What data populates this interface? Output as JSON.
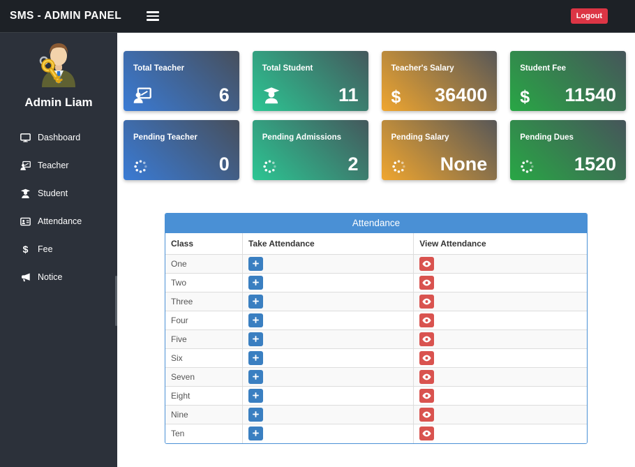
{
  "navbar": {
    "title": "SMS - ADMIN PANEL",
    "logout_label": "Logout",
    "bg_color": "#1d2126",
    "logout_color": "#dc3545"
  },
  "sidebar": {
    "bg_color": "#2c313a",
    "admin_name": "Admin Liam",
    "items": [
      {
        "label": "Dashboard",
        "icon": "desktop-icon"
      },
      {
        "label": "Teacher",
        "icon": "chalkboard-teacher-icon"
      },
      {
        "label": "Student",
        "icon": "user-graduate-icon"
      },
      {
        "label": "Attendance",
        "icon": "address-card-icon"
      },
      {
        "label": "Fee",
        "icon": "dollar-icon"
      },
      {
        "label": "Notice",
        "icon": "bullhorn-icon"
      }
    ]
  },
  "cards": [
    {
      "title": "Total Teacher",
      "value": "6",
      "icon": "chalkboard-teacher-icon",
      "gradient_from": "#3a7bd5",
      "gradient_to": "#474f5c"
    },
    {
      "title": "Total Student",
      "value": "11",
      "icon": "user-graduate-icon",
      "gradient_from": "#2cc693",
      "gradient_to": "#44585c"
    },
    {
      "title": "Teacher's Salary",
      "value": "36400",
      "icon": "dollar-icon",
      "gradient_from": "#f0a62f",
      "gradient_to": "#585757"
    },
    {
      "title": "Student Fee",
      "value": "11540",
      "icon": "dollar-icon",
      "gradient_from": "#28a745",
      "gradient_to": "#46555a"
    },
    {
      "title": "Pending Teacher",
      "value": "0",
      "icon": "spinner-icon",
      "gradient_from": "#3a7bd5",
      "gradient_to": "#474f5c"
    },
    {
      "title": "Pending Admissions",
      "value": "2",
      "icon": "spinner-icon",
      "gradient_from": "#2cc693",
      "gradient_to": "#44585c"
    },
    {
      "title": "Pending Salary",
      "value": "None",
      "icon": "spinner-icon",
      "gradient_from": "#f0a62f",
      "gradient_to": "#585757"
    },
    {
      "title": "Pending Dues",
      "value": "1520",
      "icon": "spinner-icon",
      "gradient_from": "#28a745",
      "gradient_to": "#46555a"
    }
  ],
  "attendance_table": {
    "title": "Attendance",
    "header_color": "#4a90d5",
    "columns": [
      "Class",
      "Take Attendance",
      "View Attendance"
    ],
    "rows": [
      "One",
      "Two",
      "Three",
      "Four",
      "Five",
      "Six",
      "Seven",
      "Eight",
      "Nine",
      "Ten"
    ],
    "take_button_color": "#3a7fc1",
    "view_button_color": "#d9534f"
  }
}
